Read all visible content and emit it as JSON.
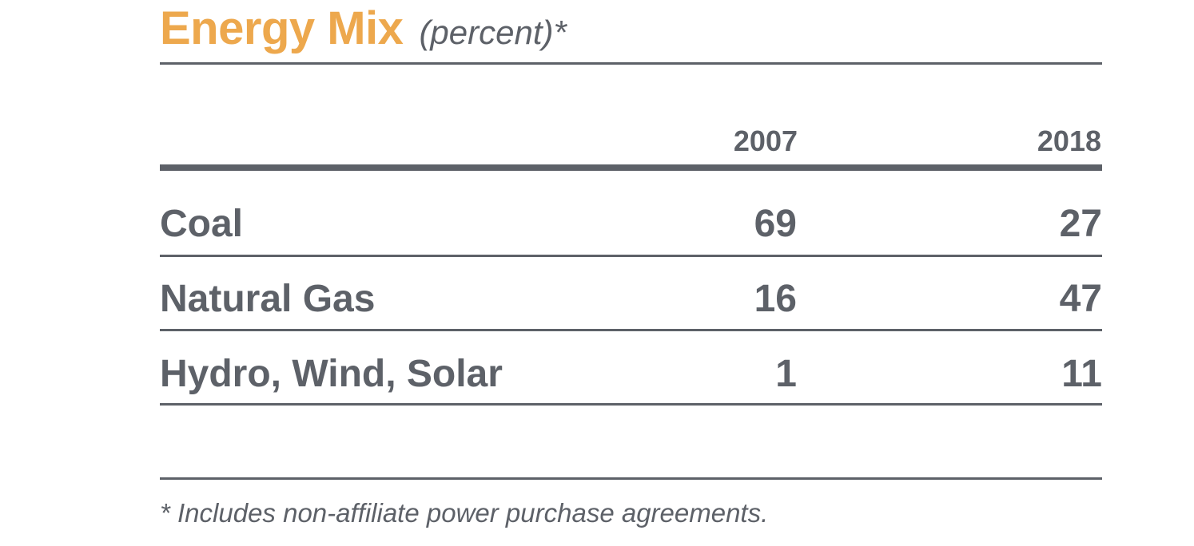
{
  "chart_data": {
    "type": "table",
    "title": "Energy Mix",
    "subtitle": "(percent)*",
    "columns": [
      "2007",
      "2018"
    ],
    "rows": [
      {
        "label": "Coal",
        "values": [
          "69",
          "27"
        ]
      },
      {
        "label": "Natural Gas",
        "values": [
          "16",
          "47"
        ]
      },
      {
        "label": "Hydro, Wind, Solar",
        "values": [
          "1",
          "11"
        ]
      }
    ],
    "footnote": "* Includes non-affiliate power purchase agreements."
  },
  "colors": {
    "title": "#eda84d",
    "text": "#5d6168",
    "rules": "#5d6168"
  }
}
